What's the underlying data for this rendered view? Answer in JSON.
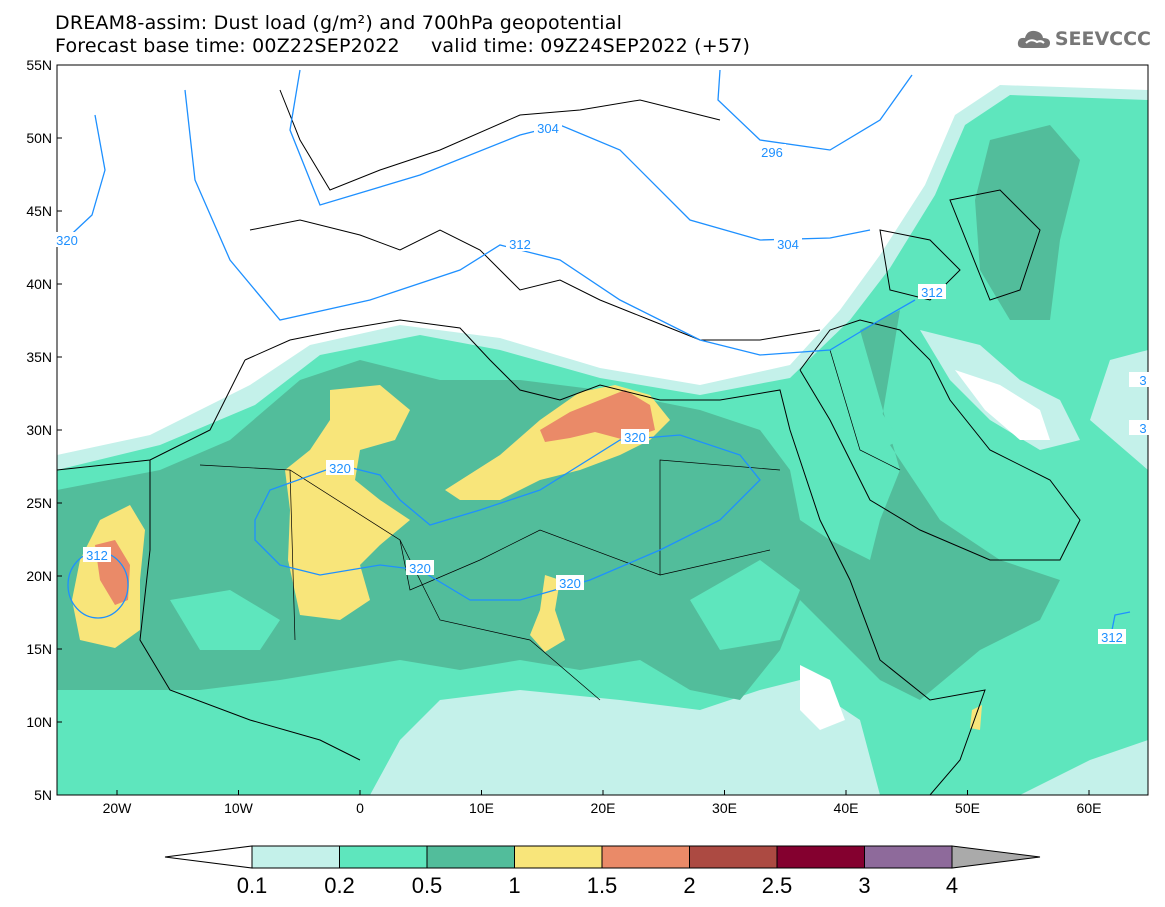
{
  "header": {
    "title": "DREAM8-assim: Dust load (g/m²) and 700hPa geopotential",
    "subtitle": "Forecast base time: 00Z22SEP2022     valid time: 09Z24SEP2022 (+57)",
    "logo_text": "SEEVCCC",
    "logo_icon": "cloud-icon"
  },
  "map": {
    "lat_labels": [
      "55N",
      "50N",
      "45N",
      "40N",
      "35N",
      "30N",
      "25N",
      "20N",
      "15N",
      "10N",
      "5N"
    ],
    "lon_labels": [
      "20W",
      "10W",
      "0",
      "10E",
      "20E",
      "30E",
      "40E",
      "50E",
      "60E"
    ],
    "contour_labels": [
      "304",
      "304",
      "296",
      "312",
      "312",
      "320",
      "320",
      "320",
      "320",
      "312",
      "312",
      "320",
      "3",
      "3"
    ],
    "contour_color": "#1e90ff"
  },
  "colorbar": {
    "ticks": [
      "0.1",
      "0.2",
      "0.5",
      "1",
      "1.5",
      "2",
      "2.5",
      "3",
      "4"
    ],
    "colors": [
      "#c4f1ea",
      "#5ee6bd",
      "#52bd9b",
      "#f8e57a",
      "#ea8a68",
      "#ac4a42",
      "#84002f",
      "#8e6a9b",
      "#aaaaaa"
    ]
  }
}
